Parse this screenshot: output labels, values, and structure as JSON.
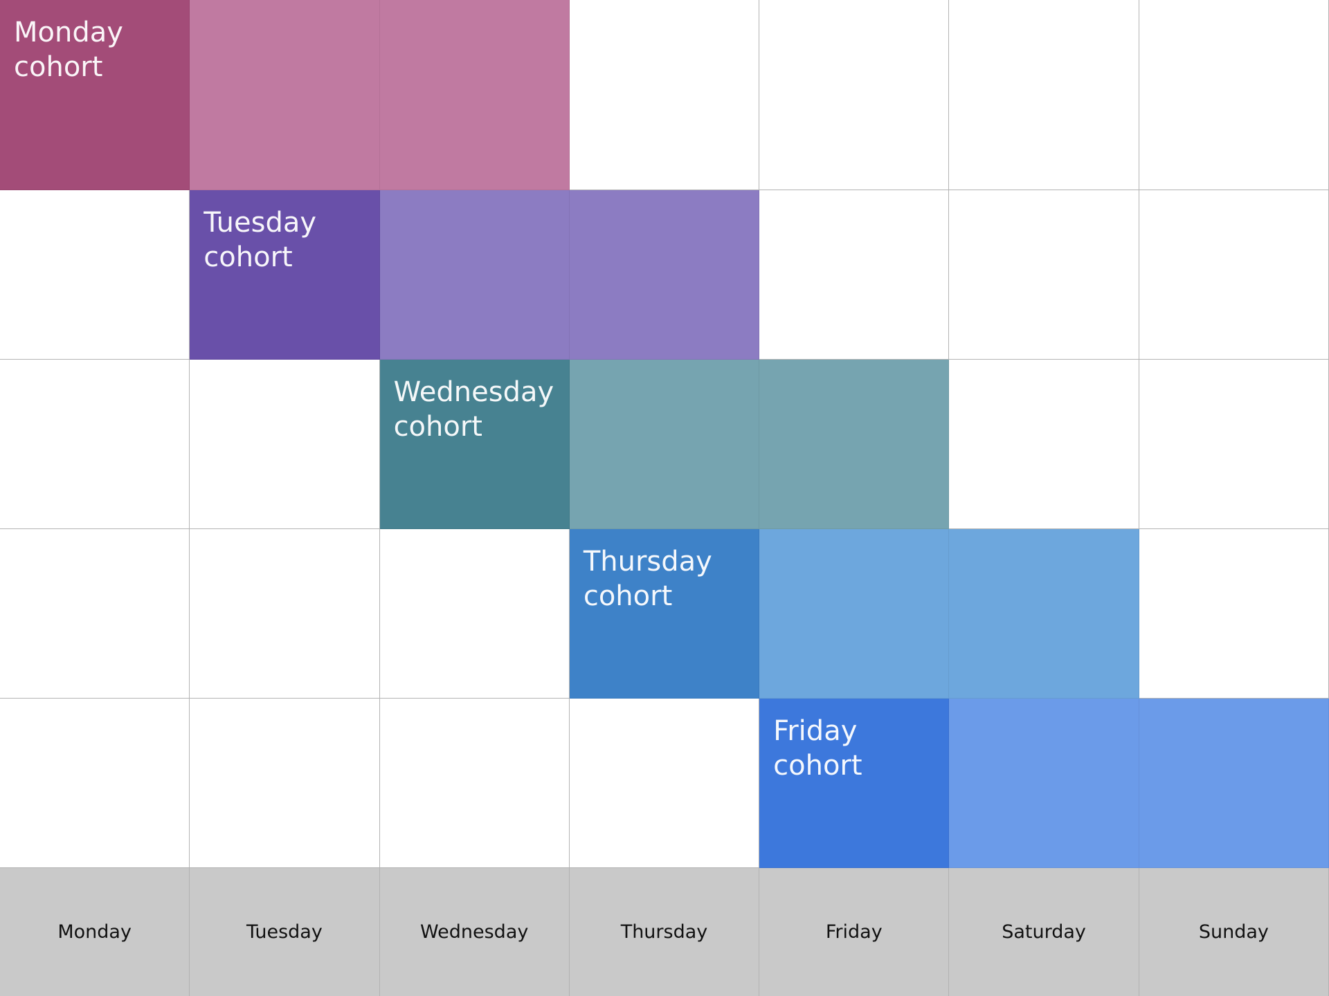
{
  "days": [
    "Monday",
    "Tuesday",
    "Wednesday",
    "Thursday",
    "Friday",
    "Saturday",
    "Sunday"
  ],
  "cohorts": [
    {
      "label": "Monday\ncohort",
      "start": 0,
      "span": 3,
      "start_color": "#a34c78",
      "tail_color": "#c07aa1"
    },
    {
      "label": "Tuesday\ncohort",
      "start": 1,
      "span": 3,
      "start_color": "#6950a9",
      "tail_color": "#8c7cc2"
    },
    {
      "label": "Wednesday\ncohort",
      "start": 2,
      "span": 3,
      "start_color": "#478291",
      "tail_color": "#76a4b0"
    },
    {
      "label": "Thursday\ncohort",
      "start": 3,
      "span": 3,
      "start_color": "#3e82c8",
      "tail_color": "#6da7dd"
    },
    {
      "label": "Friday\ncohort",
      "start": 4,
      "span": 3,
      "start_color": "#3d78dc",
      "tail_color": "#6b9be9"
    }
  ]
}
